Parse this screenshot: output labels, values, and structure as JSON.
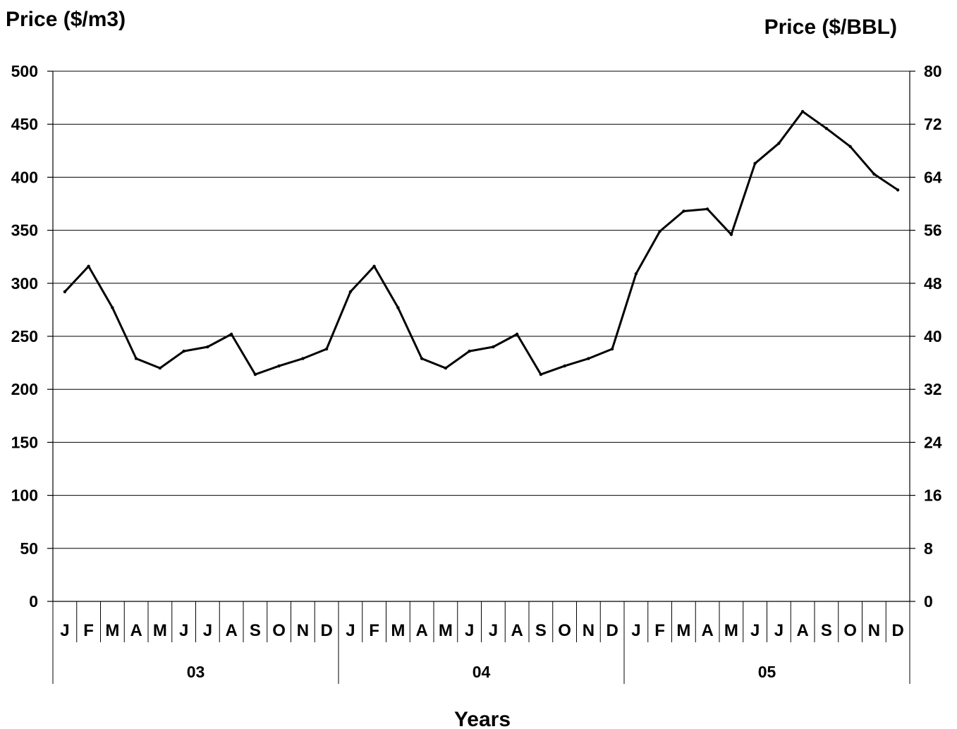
{
  "chart_data": {
    "type": "line",
    "y_left_title": "Price ($/m3)",
    "y_right_title": "Price ($/BBL)",
    "x_title": "Years",
    "y_left_ticks": [
      0,
      50,
      100,
      150,
      200,
      250,
      300,
      350,
      400,
      450,
      500
    ],
    "y_right_ticks": [
      0,
      8,
      16,
      24,
      32,
      40,
      48,
      56,
      64,
      72,
      80
    ],
    "ylim_left": [
      0,
      500
    ],
    "ylim_right": [
      0,
      80
    ],
    "grid": true,
    "months": [
      "J",
      "F",
      "M",
      "A",
      "M",
      "J",
      "J",
      "A",
      "S",
      "O",
      "N",
      "D",
      "J",
      "F",
      "M",
      "A",
      "M",
      "J",
      "J",
      "A",
      "S",
      "O",
      "N",
      "D",
      "J",
      "F",
      "M",
      "A",
      "M",
      "J",
      "J",
      "A",
      "S",
      "O",
      "N",
      "D"
    ],
    "years": [
      "03",
      "04",
      "05"
    ],
    "series": [
      {
        "values": [
          292,
          316,
          277,
          229,
          220,
          236,
          240,
          252,
          214,
          222,
          229,
          238,
          292,
          316,
          277,
          229,
          220,
          236,
          240,
          252,
          214,
          222,
          229,
          238,
          309,
          349,
          368,
          370,
          346,
          413,
          432,
          462,
          446,
          429,
          403,
          388
        ]
      }
    ]
  }
}
